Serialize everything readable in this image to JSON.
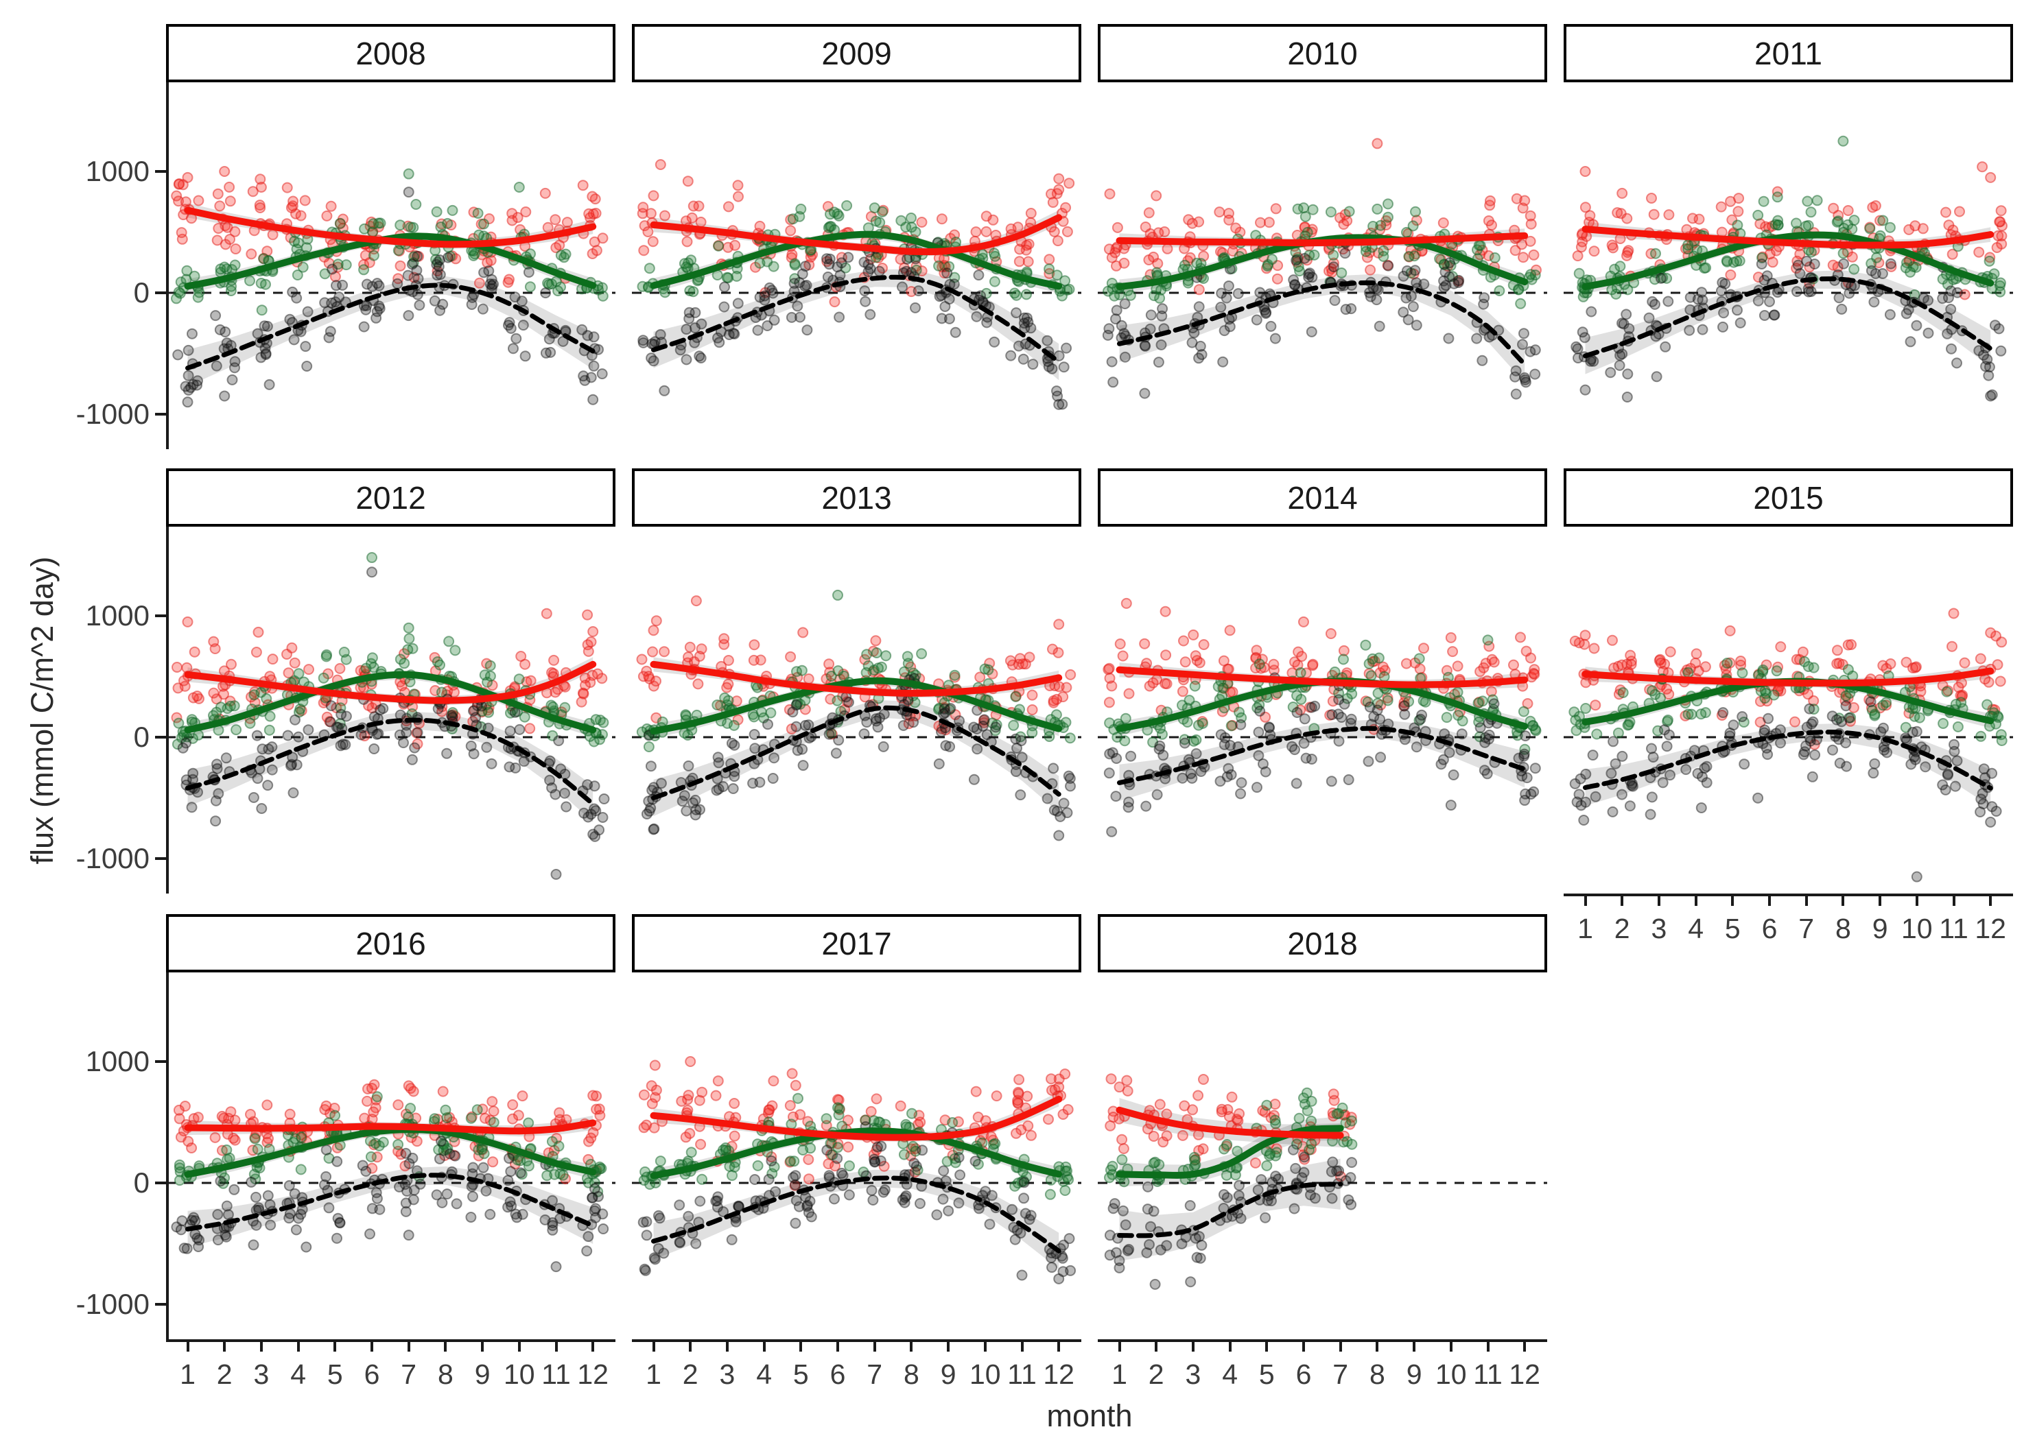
{
  "axes": {
    "x_title": "month",
    "y_title": "flux (mmol C/m^2 day)",
    "y_tick_labels": [
      "1000",
      "0",
      "-1000"
    ],
    "x_tick_labels": [
      "1",
      "2",
      "3",
      "4",
      "5",
      "6",
      "7",
      "8",
      "9",
      "10",
      "11",
      "12"
    ]
  },
  "chart_data": {
    "type": "scatter",
    "facet_variable": "year",
    "xlabel": "month",
    "ylabel": "flux (mmol C/m^2 day)",
    "x": [
      1,
      2,
      3,
      4,
      5,
      6,
      7,
      8,
      9,
      10,
      11,
      12
    ],
    "y_ticks": [
      1000,
      0,
      -1000
    ],
    "ylim": [
      -1288,
      1735
    ],
    "grid": false,
    "legend": "none",
    "zero_reference_line": 0,
    "colors": {
      "red_line": "#f5150b",
      "green_line": "#0c6e1c",
      "black_line": "#000000",
      "ribbon": "rgba(0,0,0,0.12)",
      "red_point_fill": "rgba(250,45,35,0.33)",
      "red_point_stroke": "rgba(225,30,25,0.5)",
      "green_point_fill": "rgba(30,125,50,0.33)",
      "green_point_stroke": "rgba(18,100,40,0.5)",
      "black_point_fill": "rgba(25,25,25,0.30)",
      "black_point_stroke": "rgba(15,15,15,0.45)",
      "axis": "#1a1a1a"
    },
    "facets": [
      {
        "year": "2008",
        "red_smooth": [
          680,
          615,
          560,
          510,
          470,
          440,
          415,
          400,
          405,
          430,
          480,
          545
        ],
        "green_smooth": [
          55,
          115,
          195,
          280,
          355,
          420,
          465,
          450,
          380,
          280,
          165,
          60
        ],
        "nee_smooth": [
          -620,
          -510,
          -390,
          -270,
          -150,
          -40,
          40,
          60,
          0,
          -130,
          -310,
          -480
        ],
        "outliers": [
          [
            "red",
            1,
            950
          ],
          [
            "red",
            2,
            1000
          ],
          [
            "red",
            3,
            870
          ],
          [
            "green",
            7,
            980
          ],
          [
            "black",
            7,
            830
          ],
          [
            "green",
            10,
            870
          ],
          [
            "black",
            1,
            -900
          ],
          [
            "black",
            2,
            -850
          ],
          [
            "black",
            12,
            -880
          ]
        ]
      },
      {
        "year": "2009",
        "red_smooth": [
          560,
          530,
          495,
          455,
          420,
          390,
          365,
          340,
          345,
          390,
          480,
          620
        ],
        "green_smooth": [
          60,
          140,
          235,
          330,
          410,
          465,
          480,
          435,
          340,
          230,
          125,
          55
        ],
        "nee_smooth": [
          -470,
          -370,
          -250,
          -130,
          -20,
          70,
          120,
          120,
          30,
          -140,
          -340,
          -570
        ],
        "outliers": [
          [
            "red",
            1,
            800
          ],
          [
            "red",
            12,
            850
          ],
          [
            "red",
            12,
            940
          ],
          [
            "green",
            5,
            690
          ],
          [
            "green",
            7,
            700
          ],
          [
            "black",
            12,
            -920
          ]
        ]
      },
      {
        "year": "2010",
        "red_smooth": [
          430,
          425,
          420,
          418,
          415,
          412,
          415,
          420,
          432,
          445,
          458,
          470
        ],
        "green_smooth": [
          50,
          90,
          160,
          250,
          340,
          410,
          450,
          450,
          415,
          325,
          200,
          90
        ],
        "nee_smooth": [
          -420,
          -350,
          -265,
          -165,
          -65,
          20,
          70,
          80,
          30,
          -85,
          -280,
          -590
        ],
        "outliers": [
          [
            "red",
            8,
            1230
          ],
          [
            "green",
            6,
            700
          ],
          [
            "green",
            8,
            690
          ],
          [
            "red",
            12,
            760
          ],
          [
            "black",
            12,
            -700
          ],
          [
            "red",
            2,
            800
          ]
        ]
      },
      {
        "year": "2011",
        "red_smooth": [
          525,
          500,
          478,
          458,
          438,
          420,
          405,
          395,
          393,
          400,
          430,
          480
        ],
        "green_smooth": [
          50,
          110,
          190,
          280,
          370,
          440,
          475,
          465,
          400,
          300,
          180,
          80
        ],
        "nee_smooth": [
          -520,
          -420,
          -300,
          -175,
          -55,
          45,
          105,
          110,
          50,
          -80,
          -260,
          -460
        ],
        "outliers": [
          [
            "green",
            8,
            1250
          ],
          [
            "red",
            1,
            1000
          ],
          [
            "red",
            12,
            950
          ],
          [
            "black",
            1,
            -800
          ],
          [
            "black",
            12,
            -850
          ],
          [
            "red",
            2,
            820
          ]
        ]
      },
      {
        "year": "2012",
        "red_smooth": [
          515,
          480,
          440,
          400,
          360,
          330,
          310,
          302,
          315,
          360,
          455,
          600
        ],
        "green_smooth": [
          60,
          130,
          225,
          325,
          425,
          495,
          515,
          470,
          375,
          260,
          150,
          60
        ],
        "nee_smooth": [
          -420,
          -330,
          -215,
          -95,
          15,
          105,
          140,
          120,
          40,
          -100,
          -300,
          -550
        ],
        "outliers": [
          [
            "green",
            6,
            1480
          ],
          [
            "black",
            6,
            1360
          ],
          [
            "black",
            11,
            -1130
          ],
          [
            "red",
            1,
            950
          ],
          [
            "red",
            12,
            870
          ],
          [
            "green",
            7,
            900
          ],
          [
            "black",
            12,
            -800
          ]
        ]
      },
      {
        "year": "2013",
        "red_smooth": [
          600,
          560,
          515,
          465,
          425,
          395,
          372,
          362,
          370,
          392,
          432,
          490
        ],
        "green_smooth": [
          50,
          110,
          190,
          280,
          360,
          430,
          465,
          440,
          365,
          265,
          160,
          70
        ],
        "nee_smooth": [
          -500,
          -390,
          -265,
          -130,
          10,
          140,
          235,
          220,
          110,
          -50,
          -235,
          -470
        ],
        "outliers": [
          [
            "green",
            6,
            1170
          ],
          [
            "red",
            12,
            930
          ],
          [
            "black",
            12,
            -810
          ],
          [
            "black",
            1,
            -760
          ],
          [
            "red",
            1,
            880
          ]
        ]
      },
      {
        "year": "2014",
        "red_smooth": [
          555,
          535,
          515,
          495,
          478,
          462,
          448,
          438,
          432,
          436,
          450,
          472
        ],
        "green_smooth": [
          70,
          130,
          210,
          300,
          380,
          440,
          462,
          440,
          378,
          288,
          180,
          90
        ],
        "nee_smooth": [
          -375,
          -310,
          -230,
          -140,
          -50,
          20,
          60,
          70,
          30,
          -55,
          -160,
          -265
        ],
        "outliers": [
          [
            "red",
            6,
            950
          ],
          [
            "red",
            4,
            880
          ],
          [
            "green",
            11,
            800
          ],
          [
            "black",
            10,
            -560
          ],
          [
            "black",
            12,
            -520
          ],
          [
            "red",
            10,
            820
          ]
        ]
      },
      {
        "year": "2015",
        "red_smooth": [
          520,
          500,
          483,
          468,
          458,
          450,
          446,
          446,
          452,
          468,
          500,
          545
        ],
        "green_smooth": [
          125,
          180,
          255,
          335,
          405,
          450,
          458,
          430,
          370,
          290,
          205,
          135
        ],
        "nee_smooth": [
          -415,
          -350,
          -262,
          -165,
          -70,
          -5,
          35,
          38,
          -8,
          -110,
          -250,
          -420
        ],
        "outliers": [
          [
            "red",
            11,
            1020
          ],
          [
            "black",
            10,
            -1150
          ],
          [
            "red",
            12,
            860
          ],
          [
            "black",
            12,
            -700
          ],
          [
            "red",
            1,
            840
          ]
        ]
      },
      {
        "year": "2016",
        "red_smooth": [
          455,
          452,
          450,
          452,
          458,
          466,
          462,
          450,
          436,
          428,
          446,
          495
        ],
        "green_smooth": [
          70,
          130,
          200,
          280,
          358,
          418,
          440,
          420,
          350,
          258,
          160,
          90
        ],
        "nee_smooth": [
          -380,
          -330,
          -258,
          -178,
          -88,
          -8,
          52,
          60,
          8,
          -92,
          -222,
          -352
        ],
        "outliers": [
          [
            "red",
            6,
            780
          ],
          [
            "red",
            7,
            800
          ],
          [
            "black",
            11,
            -690
          ],
          [
            "red",
            12,
            720
          ],
          [
            "green",
            8,
            600
          ],
          [
            "black",
            7,
            -430
          ]
        ]
      },
      {
        "year": "2017",
        "red_smooth": [
          555,
          525,
          487,
          448,
          415,
          392,
          378,
          376,
          392,
          440,
          548,
          690
        ],
        "green_smooth": [
          60,
          120,
          200,
          288,
          358,
          408,
          428,
          408,
          340,
          250,
          150,
          72
        ],
        "nee_smooth": [
          -480,
          -390,
          -278,
          -168,
          -68,
          0,
          38,
          28,
          -42,
          -160,
          -348,
          -560
        ],
        "outliers": [
          [
            "red",
            2,
            1000
          ],
          [
            "red",
            12,
            790
          ],
          [
            "black",
            12,
            -790
          ],
          [
            "black",
            11,
            -760
          ],
          [
            "green",
            6,
            620
          ]
        ]
      },
      {
        "year": "2018",
        "red_smooth": [
          600,
          520,
          462,
          428,
          408,
          396,
          392
        ],
        "green_smooth": [
          72,
          66,
          72,
          160,
          330,
          432,
          450
        ],
        "nee_smooth": [
          -432,
          -430,
          -380,
          -232,
          -92,
          -22,
          -10
        ],
        "outliers": [
          [
            "red",
            1,
            790
          ],
          [
            "green",
            6,
            700
          ],
          [
            "green",
            5,
            640
          ],
          [
            "black",
            1,
            -700
          ],
          [
            "black",
            1,
            -640
          ]
        ]
      }
    ]
  }
}
